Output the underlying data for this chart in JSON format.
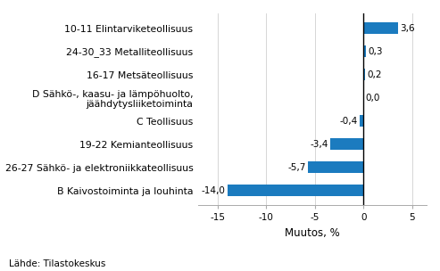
{
  "categories": [
    "B Kaivostoiminta ja louhinta",
    "26-27 Sähkö- ja elektroniikkateollisuus",
    "19-22 Kemianteollisuus",
    "C Teollisuus",
    "D Sähkö-, kaasu- ja lämpöhuolto,\njäähdytysliiketoiminta",
    "16-17 Metsäteollisuus",
    "24-30_33 Metalliteollisuus",
    "10-11 Elintarviketeollisuus"
  ],
  "values": [
    -14.0,
    -5.7,
    -3.4,
    -0.4,
    0.0,
    0.2,
    0.3,
    3.6
  ],
  "bar_color": "#1b7bbf",
  "xlim": [
    -17,
    6.5
  ],
  "xticks": [
    -15,
    -10,
    -5,
    0,
    5
  ],
  "xlabel": "Muutos, %",
  "source": "Lähde: Tilastokeskus",
  "bar_height": 0.52,
  "value_fontsize": 7.5,
  "label_fontsize": 7.8,
  "xlabel_fontsize": 8.5,
  "source_fontsize": 7.5,
  "grid_color": "#d0d0d0",
  "spine_color": "#aaaaaa"
}
